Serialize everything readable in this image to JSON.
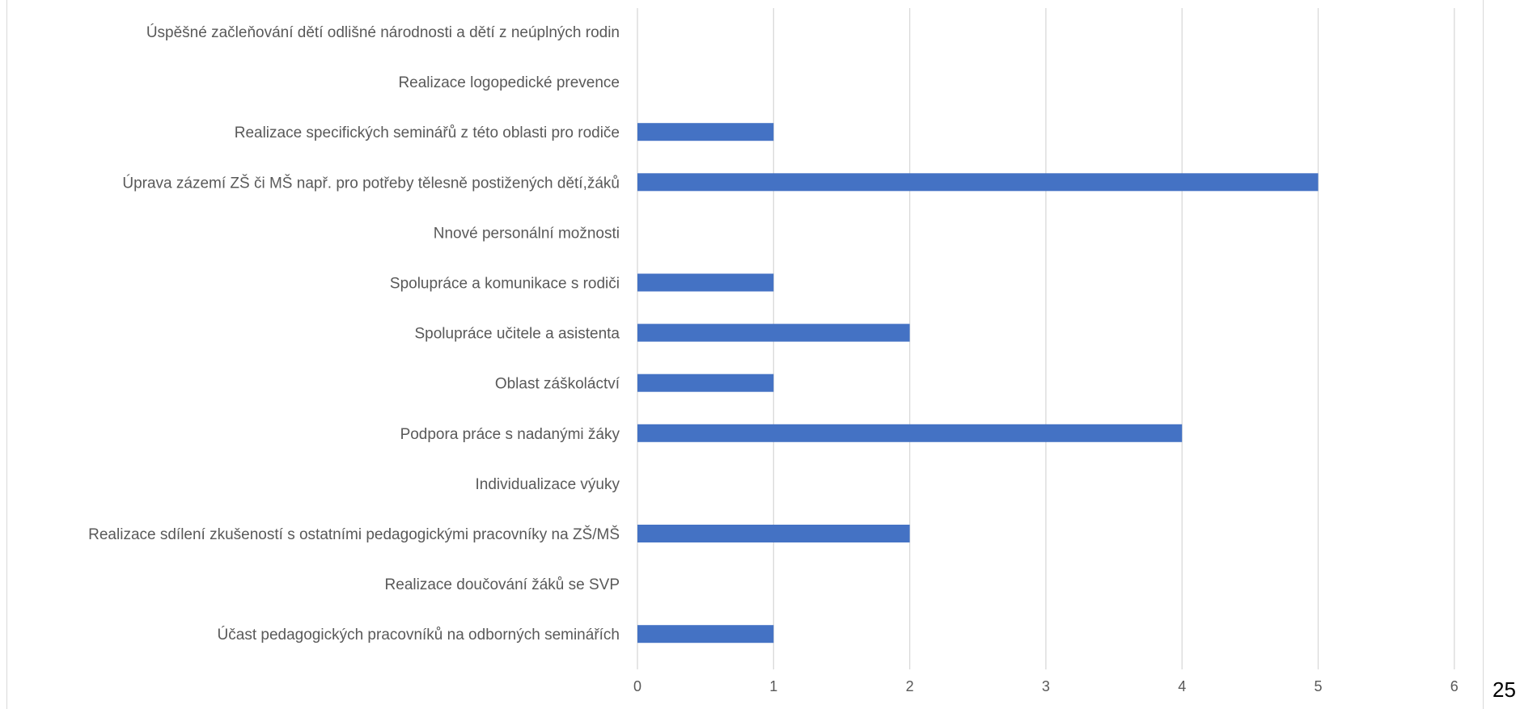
{
  "page_number": "25",
  "colors": {
    "bar": "#4472c4",
    "grid": "#d9d9d9",
    "text": "#595959"
  },
  "chart_data": {
    "type": "bar",
    "orientation": "horizontal",
    "title": "",
    "xlabel": "",
    "ylabel": "",
    "xlim": [
      0,
      6
    ],
    "x_ticks": [
      0,
      1,
      2,
      3,
      4,
      5,
      6
    ],
    "grid": true,
    "legend": "none",
    "categories": [
      "Úspěšné začleňování dětí odlišné národnosti a dětí z neúplných rodin",
      "Realizace logopedické prevence",
      "Realizace specifických seminářů z této oblasti pro rodiče",
      "Úprava zázemí ZŠ či MŠ např. pro potřeby tělesně postižených dětí,žáků",
      "Nnové personální možnosti",
      "Spolupráce a komunikace s rodiči",
      "Spolupráce učitele a asistenta",
      "Oblast záškoláctví",
      "Podpora práce s nadanými žáky",
      "Individualizace výuky",
      "Realizace sdílení zkušeností s ostatními pedagogickými pracovníky na ZŠ/MŠ",
      "Realizace doučování žáků se SVP",
      "Účast pedagogických pracovníků na odborných seminářích"
    ],
    "values": [
      0,
      0,
      1,
      5,
      0,
      1,
      2,
      1,
      4,
      0,
      2,
      0,
      1
    ]
  }
}
